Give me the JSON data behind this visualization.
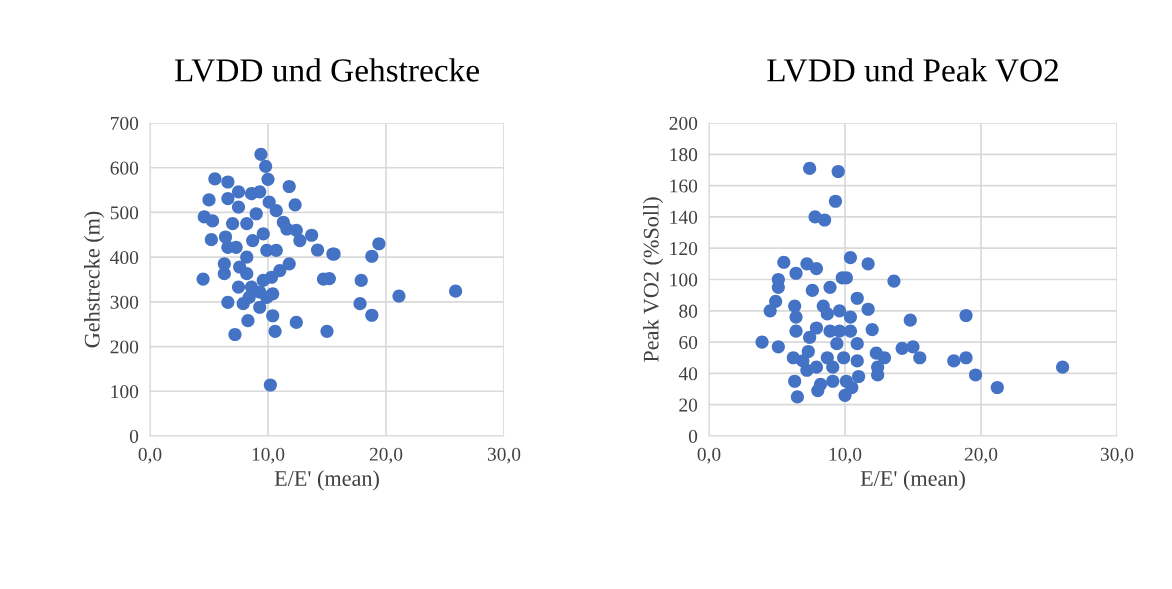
{
  "chart_data": [
    {
      "type": "scatter",
      "title": "LVDD und Gehstrecke",
      "xlabel": "E/E' (mean)",
      "ylabel": "Gehstrecke (m)",
      "xlim": [
        0,
        30
      ],
      "xticks": [
        {
          "value": 0,
          "label": "0,0"
        },
        {
          "value": 10,
          "label": "10,0"
        },
        {
          "value": 20,
          "label": "20,0"
        },
        {
          "value": 30,
          "label": "30,0"
        }
      ],
      "ylim": [
        0,
        700
      ],
      "yticks": [
        0,
        100,
        200,
        300,
        400,
        500,
        600,
        700
      ],
      "grid": true,
      "marker": "circle",
      "series": [
        {
          "color": "#4472c4",
          "x": [
            9.4,
            9.8,
            10.0,
            5.5,
            6.6,
            11.8,
            5.0,
            12.3,
            4.6,
            5.3,
            5.2,
            13.7,
            14.2,
            15.5,
            4.5,
            14.7,
            12.4,
            7.2,
            15.0,
            10.2,
            10.6,
            8.3,
            6.6,
            7.9,
            9.3,
            10.4,
            10.4,
            9.3,
            7.5,
            6.3,
            6.3,
            6.6,
            6.4,
            7.0,
            7.5,
            6.6,
            7.5,
            8.6,
            9.3,
            10.1,
            10.7,
            11.3,
            11.6,
            12.4,
            12.7,
            11.8,
            11.0,
            10.3,
            8.2,
            8.2,
            8.7,
            8.2,
            9.0,
            9.6,
            9.9,
            7.6,
            7.3,
            8.6,
            9.6,
            8.4,
            9.9,
            10.7,
            15.6,
            19.4,
            18.8,
            17.9,
            21.1,
            25.9,
            17.8,
            18.8,
            15.2
          ],
          "values": [
            630,
            603,
            574,
            575,
            568,
            558,
            528,
            517,
            490,
            481,
            439,
            449,
            416,
            407,
            351,
            351,
            254,
            227,
            234,
            114,
            234,
            258,
            299,
            296,
            288,
            269,
            318,
            322,
            333,
            363,
            385,
            422,
            445,
            475,
            512,
            531,
            546,
            542,
            546,
            523,
            504,
            478,
            463,
            460,
            437,
            385,
            370,
            355,
            363,
            400,
            437,
            475,
            497,
            452,
            415,
            378,
            422,
            333,
            348,
            310,
            310,
            415,
            407,
            430,
            402,
            348,
            313,
            324,
            296,
            270,
            352
          ]
        }
      ]
    },
    {
      "type": "scatter",
      "title": "LVDD und Peak VO2",
      "xlabel": "E/E' (mean)",
      "ylabel": "Peak VO2 (%Soll)",
      "xlim": [
        0,
        30
      ],
      "xticks": [
        {
          "value": 0,
          "label": "0,0"
        },
        {
          "value": 10,
          "label": "10,0"
        },
        {
          "value": 20,
          "label": "20,0"
        },
        {
          "value": 30,
          "label": "30,0"
        }
      ],
      "ylim": [
        0,
        200
      ],
      "yticks": [
        0,
        20,
        40,
        60,
        80,
        100,
        120,
        140,
        160,
        180,
        200
      ],
      "grid": true,
      "marker": "circle",
      "series": [
        {
          "color": "#4472c4",
          "x": [
            7.4,
            9.5,
            9.3,
            7.8,
            8.5,
            10.4,
            11.7,
            5.5,
            7.2,
            7.9,
            6.4,
            9.8,
            10.1,
            13.6,
            8.9,
            5.1,
            5.1,
            7.6,
            4.9,
            4.5,
            10.9,
            11.7,
            6.3,
            8.4,
            12.0,
            3.9,
            5.1,
            12.3,
            12.9,
            12.4,
            12.4,
            6.5,
            10.0,
            10.5,
            8.0,
            6.4,
            6.4,
            6.2,
            6.3,
            7.2,
            7.3,
            7.9,
            8.7,
            9.6,
            10.4,
            10.4,
            10.9,
            10.9,
            11.0,
            10.1,
            9.1,
            8.2,
            7.9,
            8.7,
            9.4,
            8.9,
            9.9,
            9.1,
            7.4,
            6.9,
            9.6,
            18.9,
            14.8,
            14.2,
            15.0,
            15.5,
            18.0,
            18.9,
            19.6,
            21.2,
            26.0
          ],
          "values": [
            171,
            169,
            150,
            140,
            138,
            114,
            110,
            111,
            110,
            107,
            104,
            101,
            101,
            99,
            95,
            100,
            95,
            93,
            86,
            80,
            88,
            81,
            83,
            83,
            68,
            60,
            57,
            53,
            50,
            44,
            39,
            25,
            26,
            31,
            29,
            76,
            67,
            50,
            35,
            42,
            54,
            69,
            78,
            80,
            76,
            67,
            59,
            48,
            38,
            35,
            35,
            33,
            44,
            50,
            59,
            67,
            50,
            44,
            63,
            48,
            67,
            77,
            74,
            56,
            57,
            50,
            48,
            50,
            39,
            31,
            44
          ]
        }
      ]
    }
  ]
}
